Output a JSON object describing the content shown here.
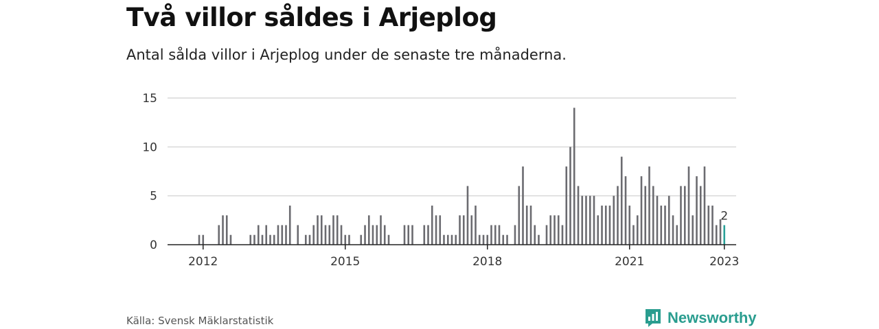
{
  "header": {
    "title": "Två villor såldes i Arjeplog",
    "subtitle": "Antal sålda villor i Arjeplog under de senaste tre månaderna."
  },
  "footer": {
    "source": "Källa: Svensk Mäklarstatistik",
    "brand": "Newsworthy"
  },
  "colors": {
    "bar": "#6b6b70",
    "highlight": "#2aa198",
    "grid": "#d9d9d9",
    "axis": "#222222",
    "brand": "#2a9d8f"
  },
  "chart_data": {
    "type": "bar",
    "title": "Två villor såldes i Arjeplog",
    "xlabel": "",
    "ylabel": "",
    "ylim": [
      0,
      15
    ],
    "yticks": [
      0,
      5,
      10,
      15
    ],
    "xlim": [
      2011.25,
      2023.25
    ],
    "xticks": [
      {
        "value": 2012.0,
        "label": "2012"
      },
      {
        "value": 2015.0,
        "label": "2015"
      },
      {
        "value": 2018.0,
        "label": "2018"
      },
      {
        "value": 2021.0,
        "label": "2021"
      },
      {
        "value": 2023.0,
        "label": "2023"
      }
    ],
    "highlight_label": "2",
    "series": [
      {
        "name": "Antal sålda villor",
        "x": [
          2011.917,
          2012.0,
          2012.333,
          2012.417,
          2012.5,
          2012.583,
          2013.0,
          2013.083,
          2013.167,
          2013.25,
          2013.333,
          2013.417,
          2013.5,
          2013.583,
          2013.667,
          2013.75,
          2013.833,
          2014.0,
          2014.167,
          2014.25,
          2014.333,
          2014.417,
          2014.5,
          2014.583,
          2014.667,
          2014.75,
          2014.833,
          2014.917,
          2015.0,
          2015.083,
          2015.333,
          2015.417,
          2015.5,
          2015.583,
          2015.667,
          2015.75,
          2015.833,
          2015.917,
          2016.25,
          2016.333,
          2016.417,
          2016.667,
          2016.75,
          2016.833,
          2016.917,
          2017.0,
          2017.083,
          2017.167,
          2017.25,
          2017.333,
          2017.417,
          2017.5,
          2017.583,
          2017.667,
          2017.75,
          2017.833,
          2017.917,
          2018.0,
          2018.083,
          2018.167,
          2018.25,
          2018.333,
          2018.417,
          2018.583,
          2018.667,
          2018.75,
          2018.833,
          2018.917,
          2019.0,
          2019.083,
          2019.25,
          2019.333,
          2019.417,
          2019.5,
          2019.583,
          2019.667,
          2019.75,
          2019.833,
          2019.917,
          2020.0,
          2020.083,
          2020.167,
          2020.25,
          2020.333,
          2020.417,
          2020.5,
          2020.583,
          2020.667,
          2020.75,
          2020.833,
          2020.917,
          2021.0,
          2021.083,
          2021.167,
          2021.25,
          2021.333,
          2021.417,
          2021.5,
          2021.583,
          2021.667,
          2021.75,
          2021.833,
          2021.917,
          2022.0,
          2022.083,
          2022.167,
          2022.25,
          2022.333,
          2022.417,
          2022.5,
          2022.583,
          2022.667,
          2022.75,
          2022.833,
          2022.917,
          2023.0
        ],
        "values": [
          1,
          1,
          2,
          3,
          3,
          1,
          1,
          1,
          2,
          1,
          2,
          1,
          1,
          2,
          2,
          2,
          4,
          2,
          1,
          1,
          2,
          3,
          3,
          2,
          2,
          3,
          3,
          2,
          1,
          1,
          1,
          2,
          3,
          2,
          2,
          3,
          2,
          1,
          2,
          2,
          2,
          2,
          2,
          4,
          3,
          3,
          1,
          1,
          1,
          1,
          3,
          3,
          6,
          3,
          4,
          1,
          1,
          1,
          2,
          2,
          2,
          1,
          1,
          2,
          6,
          8,
          4,
          4,
          2,
          1,
          2,
          3,
          3,
          3,
          2,
          8,
          10,
          14,
          6,
          5,
          5,
          5,
          5,
          3,
          4,
          4,
          4,
          5,
          6,
          9,
          7,
          4,
          2,
          3,
          7,
          6,
          8,
          6,
          5,
          4,
          4,
          5,
          3,
          2,
          6,
          6,
          8,
          3,
          7,
          6,
          8,
          4,
          4,
          2,
          2.6,
          2
        ]
      }
    ]
  }
}
